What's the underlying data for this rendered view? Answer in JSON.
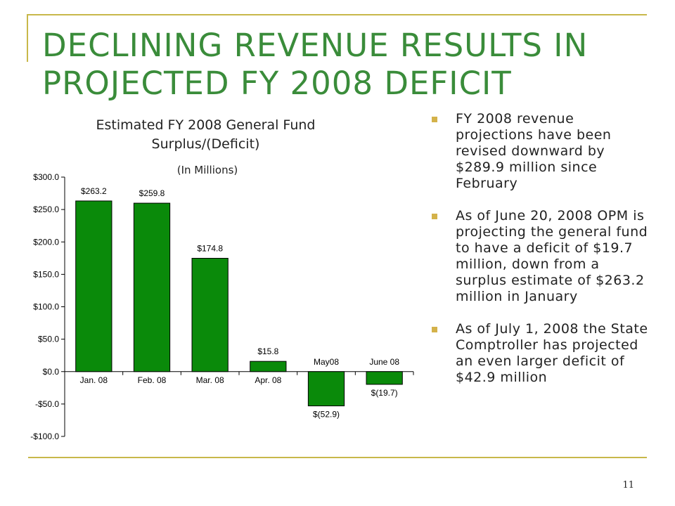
{
  "slide": {
    "title_lines": [
      "DECLINING REVENUE RESULTS IN",
      "PROJECTED FY 2008 DEFICIT"
    ],
    "page_number": "11",
    "accent_color": "#c8b84a",
    "title_color": "#3a8c3a",
    "bullets": [
      "FY 2008 revenue projections have been revised downward by $289.9 million since February",
      "As of June 20, 2008 OPM is projecting the general fund to have a deficit of $19.7 million, down from a surplus estimate of $263.2 million in January",
      "As of July 1, 2008 the State Comptroller has projected an even larger deficit of $42.9 million"
    ]
  },
  "chart_data": {
    "type": "bar",
    "title": "Estimated FY 2008 General Fund Surplus/(Deficit)",
    "subtitle": "(In Millions)",
    "categories": [
      "Jan. 08",
      "Feb. 08",
      "Mar. 08",
      "Apr. 08",
      "May08",
      "June 08"
    ],
    "values": [
      263.2,
      259.8,
      174.8,
      15.8,
      -52.9,
      -19.7
    ],
    "data_labels": [
      "$263.2",
      "$259.8",
      "$174.8",
      "$15.8",
      "$(52.9)",
      "$(19.7)"
    ],
    "yticks": [
      300,
      250,
      200,
      150,
      100,
      50,
      0,
      -50,
      -100
    ],
    "ytick_labels": [
      "$300.0",
      "$250.0",
      "$200.0",
      "$150.0",
      "$100.0",
      "$50.0",
      "$0.0",
      "-$50.0",
      "-$100.0"
    ],
    "ylim": [
      -100,
      300
    ],
    "bar_color": "#0a8a0a",
    "grid": false
  }
}
